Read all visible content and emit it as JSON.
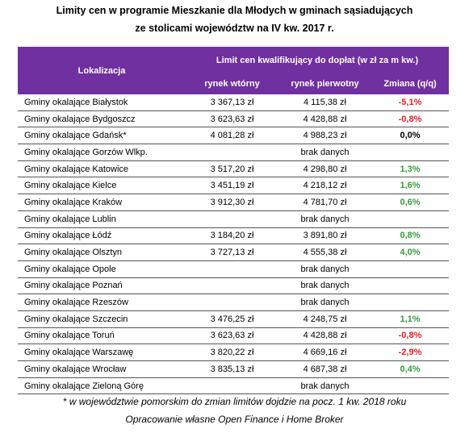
{
  "header": {
    "title_lines": [
      "Limity cen w programie Mieszkanie dla Młodych w gminach sąsiadujących",
      "ze stolicami województw na IV kw. 2017 r."
    ]
  },
  "table": {
    "columns": {
      "location": "Lokalizacja",
      "group": "Limit cen kwalifikujący do dopłat (w zł za m kw.)",
      "secondary": "rynek wtórny",
      "primary": "rynek pierwotny",
      "change": "Zmiana (q/q)"
    },
    "rows": [
      {
        "location": "Gminy okalające Białystok",
        "secondary": "3 367,13 zł",
        "primary": "4 115,38 zł",
        "change": "-5,1%",
        "color": "#e0202a"
      },
      {
        "location": "Gminy okalające Bydgoszcz",
        "secondary": "3 623,63 zł",
        "primary": "4 428,88 zł",
        "change": "-0,8%",
        "color": "#e0202a"
      },
      {
        "location": "Gminy okalające Gdańsk*",
        "secondary": "4 081,28 zł",
        "primary": "4 988,23 zł",
        "change": "0,0%",
        "color": "#000000"
      },
      {
        "location": "Gminy okalające Gorzów Wlkp.",
        "note": "brak danych"
      },
      {
        "location": "Gminy okalające Katowice",
        "secondary": "3 517,20 zł",
        "primary": "4 298,80 zł",
        "change": "1,3%",
        "color": "#3a9a3a"
      },
      {
        "location": "Gminy okalające Kielce",
        "secondary": "3 451,19 zł",
        "primary": "4 218,12 zł",
        "change": "1,6%",
        "color": "#3a9a3a"
      },
      {
        "location": "Gminy okalające Kraków",
        "secondary": "3 912,30 zł",
        "primary": "4 781,70 zł",
        "change": "0,6%",
        "color": "#3a9a3a"
      },
      {
        "location": "Gminy okalające Lublin",
        "note": "brak danych"
      },
      {
        "location": "Gminy okalające Łódź",
        "secondary": "3 184,20 zł",
        "primary": "3 891,80 zł",
        "change": "0,8%",
        "color": "#3a9a3a"
      },
      {
        "location": "Gminy okalające Olsztyn",
        "secondary": "3 727,13 zł",
        "primary": "4 555,38 zł",
        "change": "4,0%",
        "color": "#3a9a3a"
      },
      {
        "location": "Gminy okalające Opole",
        "note": "brak danych"
      },
      {
        "location": "Gminy okalające Poznań",
        "note": "brak danych"
      },
      {
        "location": "Gminy okalające Rzeszów",
        "note": "brak danych"
      },
      {
        "location": "Gminy okalające Szczecin",
        "secondary": "3 476,25 zł",
        "primary": "4 248,75 zł",
        "change": "1,1%",
        "color": "#3a9a3a"
      },
      {
        "location": "Gminy okalające Toruń",
        "secondary": "3 623,63 zł",
        "primary": "4 428,88 zł",
        "change": "-0,8%",
        "color": "#e0202a"
      },
      {
        "location": "Gminy okalające Warszawę",
        "secondary": "3 820,22 zł",
        "primary": "4 669,16 zł",
        "change": "-2,9%",
        "color": "#e0202a"
      },
      {
        "location": "Gminy okalające Wrocław",
        "secondary": "3 835,13 zł",
        "primary": "4 687,38 zł",
        "change": "0,4%",
        "color": "#3a9a3a"
      },
      {
        "location": "Gminy okalające Zieloną Górę",
        "note": "brak danych"
      }
    ]
  },
  "footer": {
    "note": "* w województwie pomorskim do zmian limitów dojdzie na pocz. 1 kw. 2018 roku",
    "source": "Opracowanie własne Open Finance i Home Broker"
  }
}
